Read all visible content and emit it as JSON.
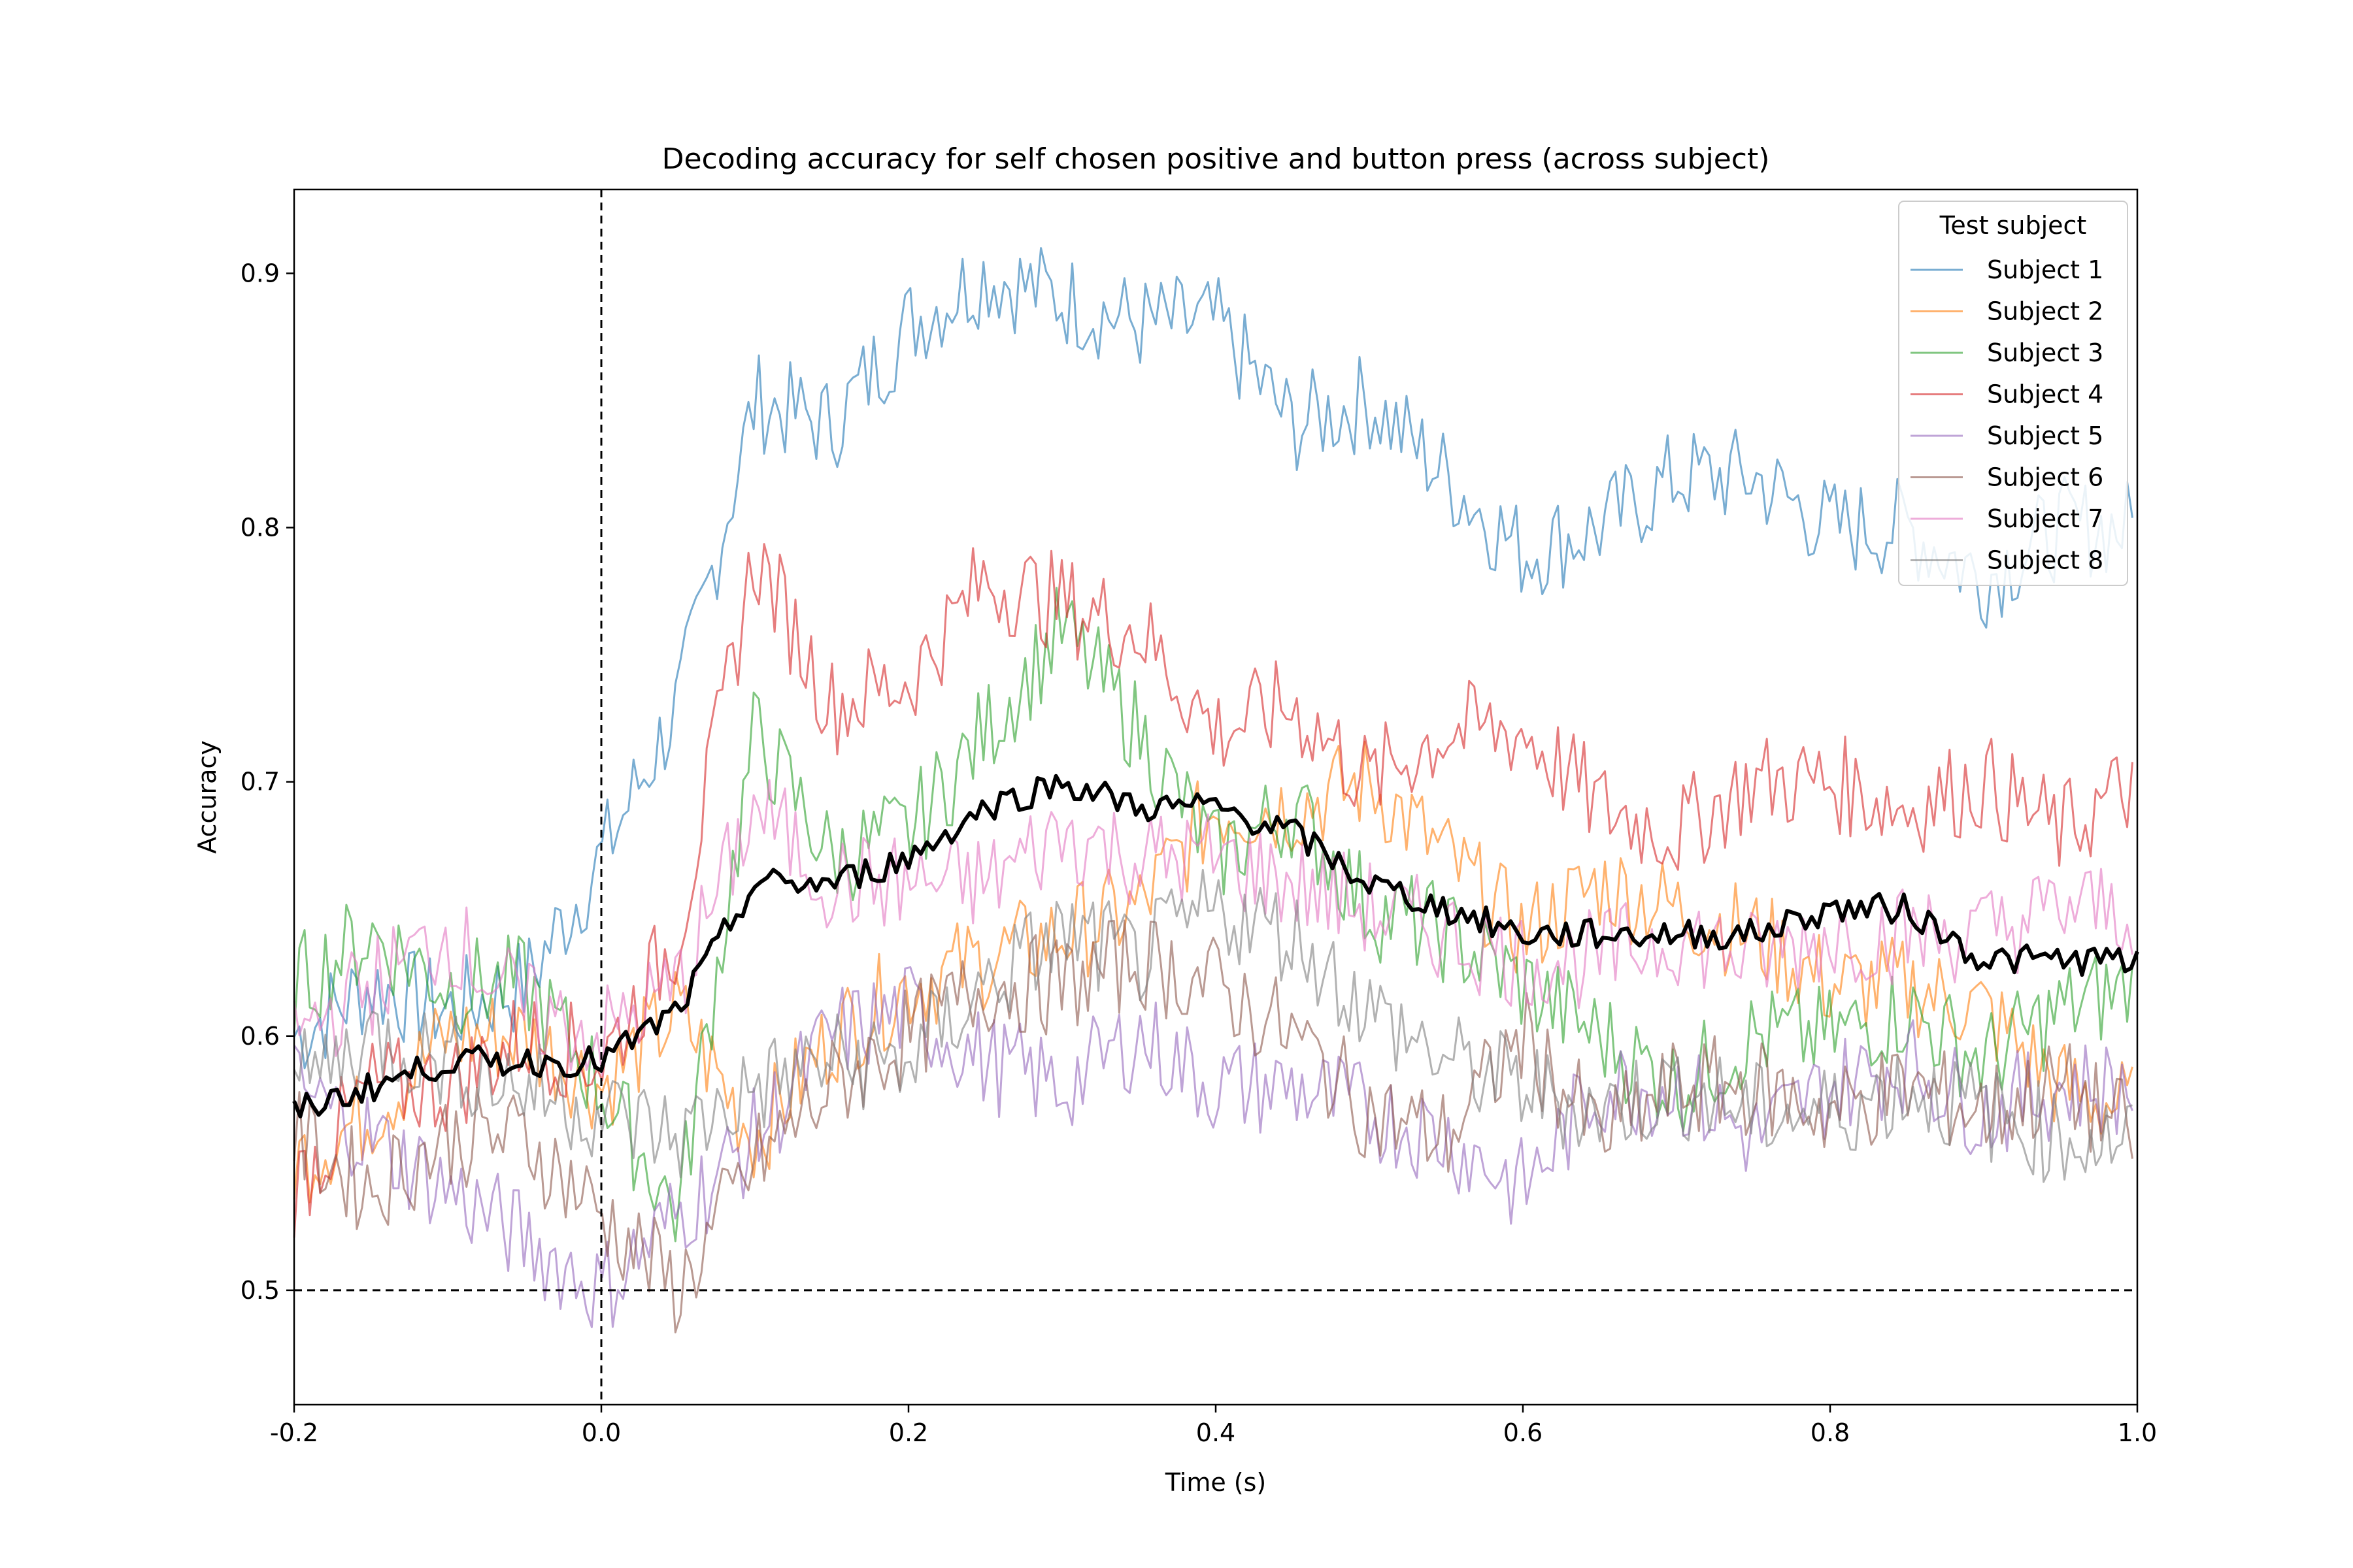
{
  "chart_data": {
    "type": "line",
    "title": "Decoding accuracy for self chosen positive and button press (across subject)",
    "xlabel": "Time (s)",
    "ylabel": "Accuracy",
    "xlim": [
      -0.2,
      1.0
    ],
    "ylim": [
      0.455,
      0.933
    ],
    "xticks": [
      -0.2,
      0.0,
      0.2,
      0.4,
      0.6,
      0.8,
      1.0
    ],
    "xtick_labels": [
      "-0.2",
      "0.0",
      "0.2",
      "0.4",
      "0.6",
      "0.8",
      "1.0"
    ],
    "yticks": [
      0.5,
      0.6,
      0.7,
      0.8,
      0.9
    ],
    "ytick_labels": [
      "0.5",
      "0.6",
      "0.7",
      "0.8",
      "0.9"
    ],
    "grid": false,
    "legend": {
      "title": "Test subject",
      "placement": "top-right"
    },
    "reference_lines": [
      {
        "orientation": "vertical",
        "value": 0.0,
        "style": "dashed",
        "color": "#000000"
      },
      {
        "orientation": "horizontal",
        "value": 0.5,
        "style": "dashed",
        "color": "#000000"
      }
    ],
    "x": [
      -0.2,
      -0.15,
      -0.1,
      -0.05,
      0.0,
      0.05,
      0.1,
      0.15,
      0.2,
      0.25,
      0.3,
      0.35,
      0.4,
      0.45,
      0.5,
      0.55,
      0.6,
      0.65,
      0.7,
      0.75,
      0.8,
      0.85,
      0.9,
      0.95,
      1.0
    ],
    "series": [
      {
        "name": "Subject 1",
        "color": "#1f77b4",
        "values": [
          0.6,
          0.62,
          0.61,
          0.62,
          0.67,
          0.73,
          0.85,
          0.84,
          0.88,
          0.9,
          0.89,
          0.88,
          0.88,
          0.84,
          0.85,
          0.82,
          0.79,
          0.8,
          0.82,
          0.82,
          0.8,
          0.8,
          0.78,
          0.8,
          0.8
        ]
      },
      {
        "name": "Subject 2",
        "color": "#ff7f0e",
        "values": [
          0.55,
          0.57,
          0.6,
          0.6,
          0.58,
          0.61,
          0.56,
          0.6,
          0.62,
          0.63,
          0.64,
          0.65,
          0.69,
          0.69,
          0.7,
          0.67,
          0.64,
          0.66,
          0.65,
          0.64,
          0.62,
          0.62,
          0.61,
          0.58,
          0.57
        ]
      },
      {
        "name": "Subject 3",
        "color": "#2ca02c",
        "values": [
          0.62,
          0.64,
          0.62,
          0.62,
          0.58,
          0.53,
          0.72,
          0.67,
          0.68,
          0.72,
          0.76,
          0.72,
          0.67,
          0.69,
          0.65,
          0.64,
          0.62,
          0.6,
          0.58,
          0.6,
          0.6,
          0.61,
          0.59,
          0.61,
          0.62
        ]
      },
      {
        "name": "Subject 4",
        "color": "#d62728",
        "values": [
          0.54,
          0.58,
          0.58,
          0.6,
          0.59,
          0.64,
          0.79,
          0.73,
          0.74,
          0.78,
          0.77,
          0.76,
          0.72,
          0.73,
          0.7,
          0.72,
          0.72,
          0.69,
          0.68,
          0.7,
          0.7,
          0.69,
          0.7,
          0.68,
          0.7
        ]
      },
      {
        "name": "Subject 5",
        "color": "#9467bd",
        "values": [
          0.58,
          0.56,
          0.54,
          0.52,
          0.5,
          0.53,
          0.56,
          0.6,
          0.61,
          0.59,
          0.58,
          0.6,
          0.58,
          0.58,
          0.57,
          0.56,
          0.54,
          0.58,
          0.58,
          0.56,
          0.58,
          0.59,
          0.57,
          0.58,
          0.58
        ]
      },
      {
        "name": "Subject 6",
        "color": "#8c564b",
        "values": [
          0.56,
          0.54,
          0.56,
          0.56,
          0.53,
          0.5,
          0.55,
          0.58,
          0.6,
          0.62,
          0.62,
          0.63,
          0.62,
          0.6,
          0.57,
          0.56,
          0.6,
          0.56,
          0.58,
          0.58,
          0.57,
          0.58,
          0.57,
          0.58,
          0.56
        ]
      },
      {
        "name": "Subject 7",
        "color": "#e377c2",
        "values": [
          0.6,
          0.62,
          0.64,
          0.61,
          0.6,
          0.62,
          0.69,
          0.66,
          0.66,
          0.66,
          0.68,
          0.67,
          0.67,
          0.66,
          0.65,
          0.64,
          0.63,
          0.63,
          0.64,
          0.63,
          0.64,
          0.64,
          0.64,
          0.65,
          0.65
        ]
      },
      {
        "name": "Subject 8",
        "color": "#7f7f7f",
        "values": [
          0.58,
          0.6,
          0.59,
          0.58,
          0.57,
          0.56,
          0.58,
          0.59,
          0.59,
          0.62,
          0.64,
          0.63,
          0.65,
          0.64,
          0.61,
          0.59,
          0.58,
          0.57,
          0.58,
          0.57,
          0.57,
          0.58,
          0.57,
          0.56,
          0.56
        ]
      },
      {
        "name": "",
        "color": "#000000",
        "values": [
          0.57,
          0.58,
          0.59,
          0.59,
          0.59,
          0.61,
          0.66,
          0.66,
          0.67,
          0.69,
          0.7,
          0.69,
          0.69,
          0.68,
          0.66,
          0.65,
          0.64,
          0.64,
          0.64,
          0.64,
          0.65,
          0.65,
          0.63,
          0.63,
          0.63
        ]
      }
    ]
  }
}
